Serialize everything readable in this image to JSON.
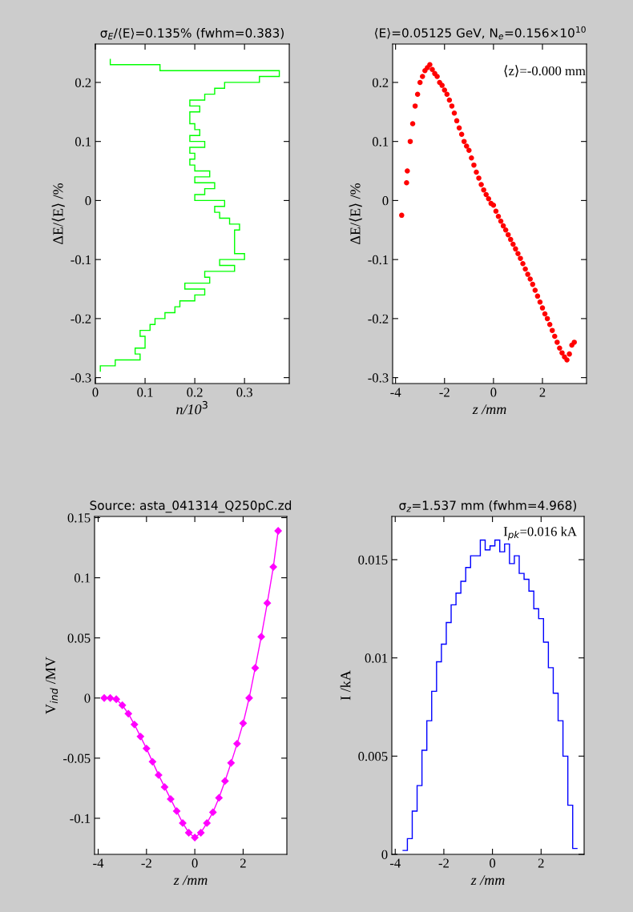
{
  "chart_data": [
    {
      "type": "histogram",
      "orientation": "horizontal",
      "title": "σ$_{E}$/⟨E⟩=0.135% (fwhm=0.383)",
      "xlabel": "n/10$^{3}$",
      "ylabel": "ΔE/⟨E⟩ /%",
      "color": "#00ff00",
      "bins": [
        -0.29,
        -0.28,
        -0.27,
        -0.26,
        -0.25,
        -0.24,
        -0.23,
        -0.22,
        -0.21,
        -0.2,
        -0.19,
        -0.18,
        -0.17,
        -0.16,
        -0.15,
        -0.14,
        -0.13,
        -0.12,
        -0.11,
        -0.1,
        -0.09,
        -0.08,
        -0.07,
        -0.06,
        -0.05,
        -0.04,
        -0.03,
        -0.02,
        -0.01,
        0,
        0.01,
        0.02,
        0.03,
        0.04,
        0.05,
        0.06,
        0.07,
        0.08,
        0.09,
        0.1,
        0.11,
        0.12,
        0.13,
        0.14,
        0.15,
        0.16,
        0.17,
        0.18,
        0.19,
        0.2,
        0.21,
        0.22,
        0.23,
        0.24
      ],
      "values": [
        0.01,
        0.04,
        0.09,
        0.08,
        0.1,
        0.1,
        0.09,
        0.11,
        0.12,
        0.14,
        0.16,
        0.17,
        0.2,
        0.22,
        0.18,
        0.23,
        0.22,
        0.28,
        0.25,
        0.3,
        0.28,
        0.28,
        0.28,
        0.28,
        0.29,
        0.27,
        0.25,
        0.24,
        0.26,
        0.2,
        0.22,
        0.24,
        0.2,
        0.23,
        0.2,
        0.19,
        0.2,
        0.19,
        0.22,
        0.19,
        0.21,
        0.2,
        0.19,
        0.19,
        0.21,
        0.19,
        0.22,
        0.24,
        0.26,
        0.33,
        0.37,
        0.13,
        0.03
      ],
      "xlim": [
        0,
        0.39
      ],
      "ylim": [
        -0.31,
        0.265
      ],
      "xticks": [
        0,
        0.1,
        0.2,
        0.3
      ],
      "yticks": [
        -0.3,
        -0.2,
        -0.1,
        0,
        0.1,
        0.2
      ]
    },
    {
      "type": "scatter",
      "title": "⟨E⟩=0.05125 GeV, N$_{e}$=0.156×10$^{10}$",
      "xlabel": "z /mm",
      "ylabel": "ΔE/⟨E⟩ /%",
      "color": "#ff0000",
      "annotations": [
        "⟨z⟩=-0.000 mm"
      ],
      "x": [
        -3.75,
        -3.55,
        -3.52,
        -3.4,
        -3.3,
        -3.2,
        -3.1,
        -3.0,
        -2.9,
        -2.8,
        -2.7,
        -2.6,
        -2.5,
        -2.4,
        -2.3,
        -2.2,
        -2.1,
        -2.0,
        -1.9,
        -1.8,
        -1.7,
        -1.6,
        -1.5,
        -1.4,
        -1.3,
        -1.2,
        -1.1,
        -1.0,
        -0.9,
        -0.8,
        -0.7,
        -0.6,
        -0.5,
        -0.4,
        -0.3,
        -0.2,
        -0.1,
        0,
        0.1,
        0.2,
        0.3,
        0.4,
        0.5,
        0.6,
        0.7,
        0.8,
        0.9,
        1.0,
        1.1,
        1.2,
        1.3,
        1.4,
        1.5,
        1.6,
        1.7,
        1.8,
        1.9,
        2.0,
        2.1,
        2.2,
        2.3,
        2.4,
        2.5,
        2.6,
        2.7,
        2.8,
        2.9,
        3.0,
        3.1,
        3.2,
        3.3
      ],
      "values": [
        -0.025,
        0.03,
        0.05,
        0.1,
        0.13,
        0.16,
        0.18,
        0.2,
        0.21,
        0.22,
        0.225,
        0.23,
        0.222,
        0.215,
        0.21,
        0.2,
        0.195,
        0.187,
        0.18,
        0.17,
        0.16,
        0.148,
        0.135,
        0.123,
        0.112,
        0.1,
        0.092,
        0.085,
        0.072,
        0.06,
        0.048,
        0.038,
        0.027,
        0.018,
        0.01,
        0.003,
        -0.005,
        -0.008,
        -0.018,
        -0.027,
        -0.035,
        -0.043,
        -0.05,
        -0.058,
        -0.066,
        -0.074,
        -0.082,
        -0.09,
        -0.098,
        -0.107,
        -0.116,
        -0.125,
        -0.133,
        -0.142,
        -0.152,
        -0.162,
        -0.172,
        -0.182,
        -0.192,
        -0.2,
        -0.21,
        -0.22,
        -0.23,
        -0.24,
        -0.25,
        -0.258,
        -0.265,
        -0.27,
        -0.26,
        -0.245,
        -0.24
      ],
      "xlim": [
        -4.12,
        3.8
      ],
      "ylim": [
        -0.31,
        0.265
      ],
      "xticks": [
        -4,
        -2,
        0,
        2
      ],
      "yticks": [
        -0.3,
        -0.2,
        -0.1,
        0,
        0.1,
        0.2
      ]
    },
    {
      "type": "line",
      "marker": "diamond",
      "title": "Source: asta_041314_Q250pC.zd",
      "xlabel": "z /mm",
      "ylabel": "V$_{ind}$ /MV",
      "color": "#ff00ff",
      "x": [
        -3.75,
        -3.5,
        -3.25,
        -3.0,
        -2.75,
        -2.5,
        -2.25,
        -2.0,
        -1.75,
        -1.5,
        -1.25,
        -1.0,
        -0.75,
        -0.5,
        -0.25,
        0,
        0.25,
        0.5,
        0.75,
        1.0,
        1.25,
        1.5,
        1.75,
        2.0,
        2.25,
        2.5,
        2.75,
        3.0,
        3.25,
        3.45
      ],
      "values": [
        0,
        0,
        -0.001,
        -0.006,
        -0.013,
        -0.022,
        -0.032,
        -0.042,
        -0.053,
        -0.064,
        -0.074,
        -0.084,
        -0.094,
        -0.104,
        -0.112,
        -0.116,
        -0.112,
        -0.104,
        -0.095,
        -0.083,
        -0.069,
        -0.054,
        -0.038,
        -0.021,
        0.0,
        0.025,
        0.051,
        0.079,
        0.109,
        0.139
      ],
      "xlim": [
        -4.15,
        3.81
      ],
      "ylim": [
        -0.13,
        0.151
      ],
      "xticks": [
        -4,
        -2,
        0,
        2
      ],
      "yticks": [
        -0.1,
        -0.05,
        0,
        0.05,
        0.1,
        0.15
      ]
    },
    {
      "type": "histogram",
      "title": "σ$_{z}$=1.537 mm (fwhm=4.968)",
      "xlabel": "z /mm",
      "ylabel": "I /kA",
      "color": "#0000ff",
      "annotations": [
        "I$_{pk}$=0.016 kA"
      ],
      "bins": [
        -3.7,
        -3.5,
        -3.3,
        -3.1,
        -2.9,
        -2.7,
        -2.5,
        -2.3,
        -2.1,
        -1.9,
        -1.7,
        -1.5,
        -1.3,
        -1.1,
        -0.9,
        -0.7,
        -0.5,
        -0.3,
        -0.1,
        0.1,
        0.3,
        0.5,
        0.7,
        0.9,
        1.1,
        1.3,
        1.5,
        1.7,
        1.9,
        2.1,
        2.3,
        2.5,
        2.7,
        2.9,
        3.1,
        3.3,
        3.5
      ],
      "values": [
        0.0002,
        0.0008,
        0.0022,
        0.0035,
        0.0053,
        0.0068,
        0.0083,
        0.0098,
        0.0107,
        0.0118,
        0.0127,
        0.0133,
        0.0139,
        0.0146,
        0.0152,
        0.0152,
        0.016,
        0.0155,
        0.0157,
        0.016,
        0.0154,
        0.0158,
        0.0148,
        0.0152,
        0.0143,
        0.014,
        0.0134,
        0.0125,
        0.012,
        0.0108,
        0.0095,
        0.0082,
        0.0068,
        0.005,
        0.0025,
        0.0003
      ],
      "xlim": [
        -4.14,
        3.77
      ],
      "ylim": [
        0,
        0.0172
      ],
      "xticks": [
        -4,
        -2,
        0,
        2
      ],
      "yticks": [
        0,
        0.005,
        0.01,
        0.015
      ]
    }
  ]
}
